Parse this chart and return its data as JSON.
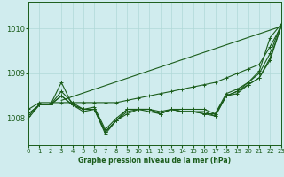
{
  "background_color": "#d0ecee",
  "grid_color": "#b0d8d8",
  "line_color": "#1a5c1a",
  "xlabel": "Graphe pression niveau de la mer (hPa)",
  "xlim": [
    0,
    23
  ],
  "ylim": [
    1007.4,
    1010.6
  ],
  "yticks": [
    1008,
    1009,
    1010
  ],
  "xticks": [
    0,
    1,
    2,
    3,
    4,
    5,
    6,
    7,
    8,
    9,
    10,
    11,
    12,
    13,
    14,
    15,
    16,
    17,
    18,
    19,
    20,
    21,
    22,
    23
  ],
  "series": [
    [
      1008.2,
      1008.35,
      1008.35,
      1008.35,
      1008.35,
      1008.35,
      1008.35,
      1008.35,
      1008.35,
      1008.4,
      1008.45,
      1008.5,
      1008.55,
      1008.6,
      1008.65,
      1008.7,
      1008.75,
      1008.8,
      1008.9,
      1009.0,
      1009.1,
      1009.2,
      1009.6,
      1010.05
    ],
    [
      1008.1,
      1008.3,
      1008.3,
      1008.6,
      1008.35,
      1008.2,
      1008.25,
      1007.75,
      1008.0,
      1008.2,
      1008.2,
      1008.2,
      1008.15,
      1008.2,
      1008.2,
      1008.2,
      1008.2,
      1008.1,
      1008.55,
      1008.65,
      1008.8,
      1009.0,
      1009.45,
      1010.1
    ],
    [
      1008.05,
      1008.3,
      1008.3,
      1008.5,
      1008.3,
      1008.2,
      1008.2,
      1007.7,
      1007.95,
      1008.15,
      1008.2,
      1008.2,
      1008.1,
      1008.2,
      1008.15,
      1008.15,
      1008.15,
      1008.05,
      1008.5,
      1008.6,
      1008.75,
      1008.9,
      1009.35,
      1010.05
    ],
    [
      1008.0,
      1008.3,
      1008.3,
      1008.5,
      1008.3,
      1008.15,
      1008.2,
      1007.65,
      1007.95,
      1008.1,
      1008.2,
      1008.15,
      1008.1,
      1008.2,
      1008.15,
      1008.15,
      1008.1,
      1008.05,
      1008.5,
      1008.55,
      1008.75,
      1008.9,
      1009.3,
      1010.05
    ],
    [
      1008.1,
      1008.3,
      1008.3,
      1008.8,
      1008.3,
      1008.2,
      1008.2,
      1007.7,
      1007.95,
      1008.2,
      1008.2,
      1008.2,
      1008.1,
      1008.2,
      1008.15,
      1008.15,
      1008.1,
      1008.1,
      1008.5,
      1008.6,
      1008.8,
      1009.05,
      1009.8,
      1010.1
    ]
  ],
  "straight_line": [
    1008.4,
    1010.05
  ],
  "straight_line_x": [
    3,
    23
  ],
  "marker": "+",
  "markersize": 3,
  "linewidth": 0.8
}
